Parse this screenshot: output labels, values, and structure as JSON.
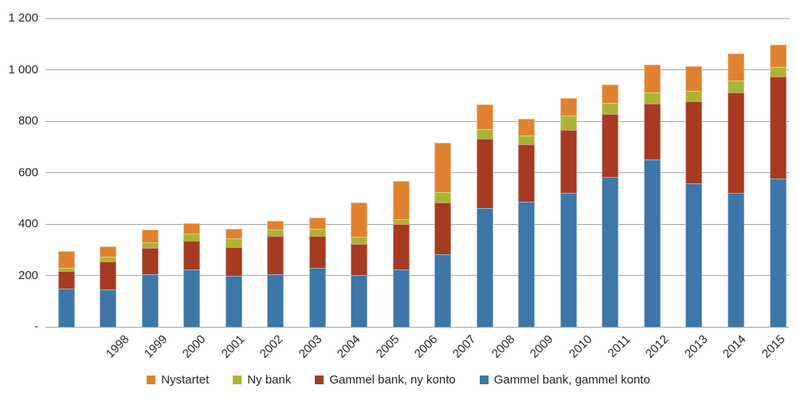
{
  "chart_data": {
    "type": "bar",
    "stacked": true,
    "title": "",
    "xlabel": "",
    "ylabel": "",
    "ylim": [
      0,
      1200
    ],
    "grid": true,
    "legend_position": "bottom",
    "categories": [
      "1998",
      "1999",
      "2000",
      "2001",
      "2002",
      "2003",
      "2004",
      "2005",
      "2006",
      "2007",
      "2008",
      "2009",
      "2010",
      "2011",
      "2012",
      "2013",
      "2014",
      "2015"
    ],
    "series": [
      {
        "name": "Gammel bank, gammel konto",
        "color": "#3d76a8",
        "values": [
          148,
          145,
          204,
          224,
          198,
          204,
          229,
          203,
          224,
          281,
          463,
          488,
          520,
          583,
          651,
          559,
          521,
          576
        ]
      },
      {
        "name": "Gammel bank, ny konto",
        "color": "#a63b22",
        "values": [
          69,
          109,
          102,
          112,
          112,
          150,
          125,
          120,
          175,
          203,
          269,
          222,
          245,
          245,
          216,
          318,
          391,
          398
        ]
      },
      {
        "name": "Ny bank",
        "color": "#abb432",
        "values": [
          13,
          19,
          22,
          26,
          33,
          23,
          29,
          26,
          21,
          40,
          38,
          35,
          57,
          42,
          46,
          40,
          47,
          36
        ]
      },
      {
        "name": "Nystartet",
        "color": "#e0812f",
        "values": [
          64,
          39,
          49,
          41,
          37,
          37,
          42,
          135,
          146,
          191,
          95,
          65,
          68,
          73,
          108,
          96,
          104,
          89
        ]
      }
    ],
    "totals": [
      294,
      312,
      377,
      403,
      380,
      414,
      425,
      484,
      566,
      715,
      865,
      810,
      890,
      943,
      1021,
      1013,
      1063,
      1099
    ],
    "y_ticks": [
      {
        "label": "1 200",
        "value": 1200
      },
      {
        "label": "1 000",
        "value": 1000
      },
      {
        "label": "800",
        "value": 800
      },
      {
        "label": "600",
        "value": 600
      },
      {
        "label": "400",
        "value": 400
      },
      {
        "label": "200",
        "value": 200
      },
      {
        "label": "-",
        "value": 0
      }
    ],
    "legend_order": [
      "Nystartet",
      "Ny bank",
      "Gammel bank, ny konto",
      "Gammel bank, gammel konto"
    ],
    "gridline_color": "#a6a6a6",
    "text_color": "#262626"
  }
}
